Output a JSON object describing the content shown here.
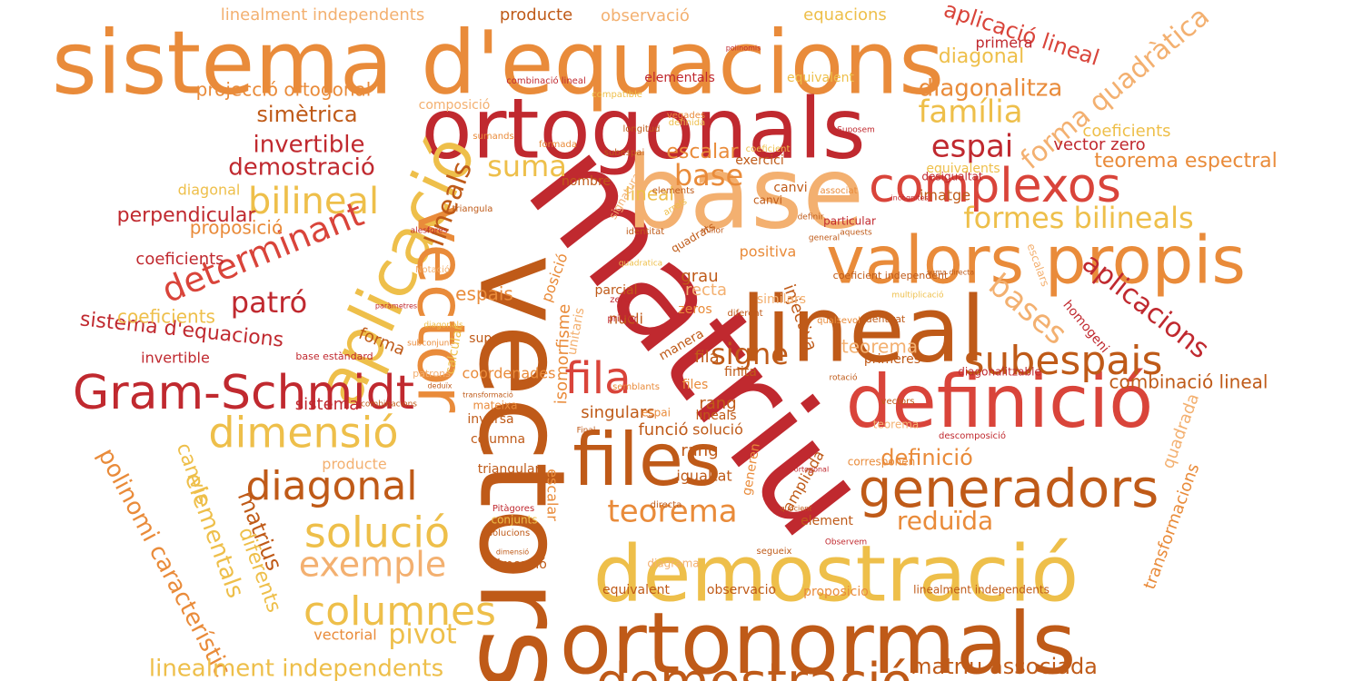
{
  "palette": {
    "dark_red": "#c0292f",
    "red": "#d9443a",
    "orange": "#e98b3a",
    "light_orange": "#f3b070",
    "yellow": "#eebf4a",
    "dark_orange": "#bf5a18"
  },
  "words": [
    "sistema d'equacions",
    "ortogonals",
    "matriu",
    "vectors",
    "base",
    "lineal",
    "aplicació",
    "valors propis",
    "vector",
    "definició",
    "ortonormals",
    "demostració",
    "files",
    "generadors",
    "complexos",
    "Gram-Schmidt",
    "subespais",
    "dimensió",
    "diagonal",
    "solució",
    "exemple",
    "columnes",
    "demostració",
    "bilineal",
    "determinant",
    "formes bilineals",
    "aplicacions",
    "fila",
    "lineals",
    "patró",
    "espai",
    "família",
    "forma quadràtica",
    "teorema",
    "bases",
    "reduïda",
    "teorema espectral",
    "aplicació lineal",
    "diagonalitza",
    "diagonal",
    "primera",
    "suma",
    "base",
    "signe",
    "invertible",
    "simètrica",
    "projecció ortogonal",
    "demostració",
    "perpendicular",
    "proposició",
    "coeficients",
    "sistema d'equacions",
    "polinomi característic",
    "matrius",
    "elementals",
    "diferents",
    "canvis",
    "linealment independents",
    "producte",
    "vectorial",
    "pivot",
    "matriu associada",
    "linealment independents",
    "combinació lineal",
    "transformacions",
    "quadrada",
    "definició",
    "vector zero",
    "coeficients",
    "equacions",
    "observació",
    "producte",
    "linealment independents",
    "homogeni",
    "imatge",
    "particular",
    "desigualtat",
    "diagonalitzable",
    "rang",
    "grau",
    "recta",
    "funció",
    "igualtat",
    "singulars",
    "isomorfisme",
    "espais",
    "superior",
    "coordenades",
    "injectiva",
    "positiva",
    "similars",
    "coeficient independent",
    "teorema",
    "primeres",
    "sistema",
    "invertible",
    "forma",
    "diagonal",
    "proposicio",
    "observacio",
    "equivalent",
    "dimensió",
    "element",
    "escalar",
    "triangular",
    "columna",
    "inversa",
    "mateixa",
    "nombre",
    "exercici",
    "canvi",
    "escalar",
    "lineal",
    "elementals",
    "composició",
    "combinació lineal",
    "equivalent",
    "compatible",
    "longitud",
    "multiplicació",
    "diferent",
    "calcular",
    "nucli",
    "zeros",
    "parcial",
    "zero",
    "primer",
    "identitat",
    "unitaris",
    "posició",
    "manera",
    "finita",
    "fila",
    "files",
    "rang",
    "lineals",
    "solució",
    "solucions",
    "corresponen",
    "Suposem",
    "associat",
    "canvi",
    "coeficient",
    "base estàndard",
    "patrons",
    "combinacions",
    "transformació",
    "coeficients",
    "equivalents",
    "polinomis",
    "vegades",
    "definida",
    "formada",
    "arrels",
    "quadrats",
    "millor",
    "general",
    "aquests",
    "qualsevol",
    "semblants",
    "sumands",
    "subespai",
    "triangula",
    "elements",
    "signatura",
    "quadratica",
    "alesfores",
    "Notació",
    "paràmetres",
    "subconjunt",
    "diagonals",
    "deduïx",
    "Pitàgores",
    "conjunts",
    "dimensió",
    "diagrama",
    "directa",
    "segueix",
    "ampliada",
    "generen",
    "quocient",
    "descomposició",
    "Observem",
    "incògnites",
    "espai",
    "definir",
    "identitat",
    "teorema",
    "rotació",
    "vectors",
    "suma directa",
    "ortogonal",
    "Final",
    "escalars"
  ]
}
